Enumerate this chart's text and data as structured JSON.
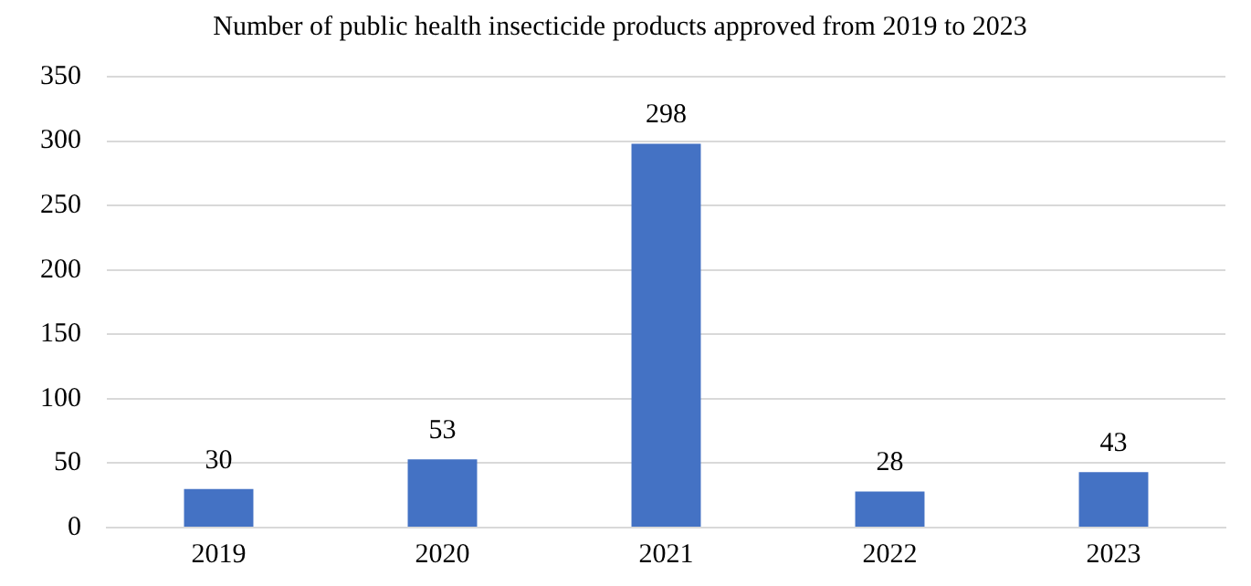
{
  "chart_data": {
    "type": "bar",
    "title": "Number of public health insecticide products approved from 2019 to 2023",
    "categories": [
      "2019",
      "2020",
      "2021",
      "2022",
      "2023"
    ],
    "values": [
      30,
      53,
      298,
      28,
      43
    ],
    "color": "#4472c4",
    "ylim": [
      0,
      350
    ],
    "yticks": [
      0,
      50,
      100,
      150,
      200,
      250,
      300,
      350
    ],
    "grid": "y",
    "data_labels": true,
    "legend": false
  }
}
